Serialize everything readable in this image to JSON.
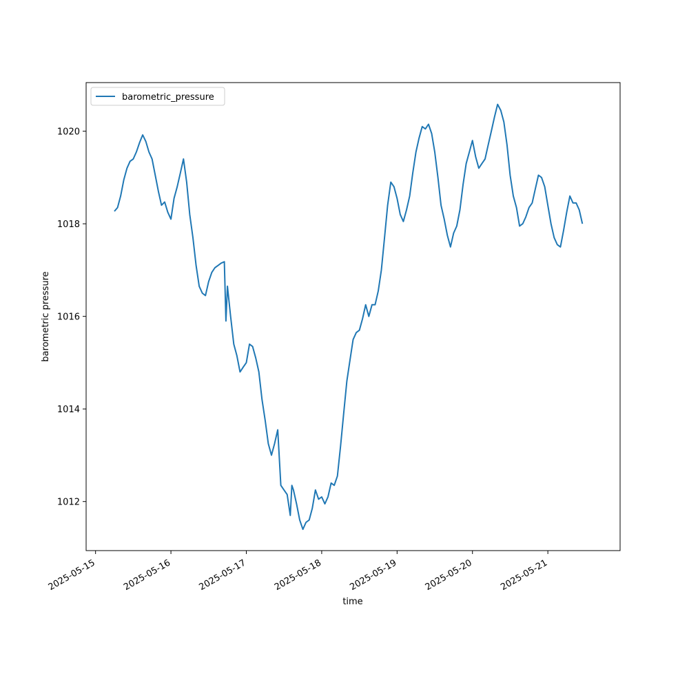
{
  "chart_data": {
    "type": "line",
    "title": "",
    "xlabel": "time",
    "ylabel": "barometric pressure",
    "x_ticks": [
      "2025-05-15",
      "2025-05-16",
      "2025-05-17",
      "2025-05-18",
      "2025-05-19",
      "2025-05-20",
      "2025-05-21"
    ],
    "y_ticks": [
      1012,
      1014,
      1016,
      1018,
      1020
    ],
    "xlim": [
      "2025-05-14 21:00",
      "2025-05-21 23:00"
    ],
    "ylim": [
      1010.94,
      1021.05
    ],
    "grid": false,
    "legend": {
      "position": "upper left",
      "entries": [
        "barometric_pressure"
      ]
    },
    "series": [
      {
        "name": "barometric_pressure",
        "color": "#1f77b4",
        "points": [
          [
            "2025-05-15 06:00",
            1018.27
          ],
          [
            "2025-05-15 07:00",
            1018.35
          ],
          [
            "2025-05-15 08:00",
            1018.6
          ],
          [
            "2025-05-15 09:00",
            1018.95
          ],
          [
            "2025-05-15 10:00",
            1019.2
          ],
          [
            "2025-05-15 11:00",
            1019.35
          ],
          [
            "2025-05-15 12:00",
            1019.4
          ],
          [
            "2025-05-15 13:00",
            1019.55
          ],
          [
            "2025-05-15 14:00",
            1019.75
          ],
          [
            "2025-05-15 15:00",
            1019.92
          ],
          [
            "2025-05-15 16:00",
            1019.78
          ],
          [
            "2025-05-15 17:00",
            1019.55
          ],
          [
            "2025-05-15 18:00",
            1019.4
          ],
          [
            "2025-05-15 19:00",
            1019.05
          ],
          [
            "2025-05-15 20:00",
            1018.7
          ],
          [
            "2025-05-15 21:00",
            1018.4
          ],
          [
            "2025-05-15 22:00",
            1018.47
          ],
          [
            "2025-05-15 23:00",
            1018.25
          ],
          [
            "2025-05-16 00:00",
            1018.1
          ],
          [
            "2025-05-16 01:00",
            1018.55
          ],
          [
            "2025-05-16 02:00",
            1018.8
          ],
          [
            "2025-05-16 03:00",
            1019.1
          ],
          [
            "2025-05-16 04:00",
            1019.4
          ],
          [
            "2025-05-16 05:00",
            1018.9
          ],
          [
            "2025-05-16 06:00",
            1018.2
          ],
          [
            "2025-05-16 07:00",
            1017.7
          ],
          [
            "2025-05-16 08:00",
            1017.1
          ],
          [
            "2025-05-16 09:00",
            1016.65
          ],
          [
            "2025-05-16 10:00",
            1016.5
          ],
          [
            "2025-05-16 11:00",
            1016.45
          ],
          [
            "2025-05-16 12:00",
            1016.75
          ],
          [
            "2025-05-16 13:00",
            1016.95
          ],
          [
            "2025-05-16 14:00",
            1017.05
          ],
          [
            "2025-05-16 15:00",
            1017.1
          ],
          [
            "2025-05-16 16:00",
            1017.15
          ],
          [
            "2025-05-16 17:00",
            1017.18
          ],
          [
            "2025-05-16 17:30",
            1015.9
          ],
          [
            "2025-05-16 18:00",
            1016.65
          ],
          [
            "2025-05-16 19:00",
            1016.0
          ],
          [
            "2025-05-16 20:00",
            1015.4
          ],
          [
            "2025-05-16 21:00",
            1015.15
          ],
          [
            "2025-05-16 22:00",
            1014.8
          ],
          [
            "2025-05-16 23:00",
            1014.9
          ],
          [
            "2025-05-17 00:00",
            1015.0
          ],
          [
            "2025-05-17 01:00",
            1015.4
          ],
          [
            "2025-05-17 02:00",
            1015.35
          ],
          [
            "2025-05-17 03:00",
            1015.1
          ],
          [
            "2025-05-17 04:00",
            1014.8
          ],
          [
            "2025-05-17 05:00",
            1014.2
          ],
          [
            "2025-05-17 06:00",
            1013.75
          ],
          [
            "2025-05-17 07:00",
            1013.25
          ],
          [
            "2025-05-17 08:00",
            1013.0
          ],
          [
            "2025-05-17 09:00",
            1013.25
          ],
          [
            "2025-05-17 10:00",
            1013.55
          ],
          [
            "2025-05-17 11:00",
            1012.35
          ],
          [
            "2025-05-17 12:00",
            1012.25
          ],
          [
            "2025-05-17 13:00",
            1012.15
          ],
          [
            "2025-05-17 14:00",
            1011.7
          ],
          [
            "2025-05-17 14:30",
            1012.35
          ],
          [
            "2025-05-17 15:00",
            1012.25
          ],
          [
            "2025-05-17 16:00",
            1011.95
          ],
          [
            "2025-05-17 17:00",
            1011.6
          ],
          [
            "2025-05-17 18:00",
            1011.4
          ],
          [
            "2025-05-17 19:00",
            1011.55
          ],
          [
            "2025-05-17 20:00",
            1011.6
          ],
          [
            "2025-05-17 21:00",
            1011.85
          ],
          [
            "2025-05-17 22:00",
            1012.25
          ],
          [
            "2025-05-17 23:00",
            1012.05
          ],
          [
            "2025-05-18 00:00",
            1012.1
          ],
          [
            "2025-05-18 01:00",
            1011.95
          ],
          [
            "2025-05-18 02:00",
            1012.1
          ],
          [
            "2025-05-18 03:00",
            1012.4
          ],
          [
            "2025-05-18 04:00",
            1012.35
          ],
          [
            "2025-05-18 05:00",
            1012.55
          ],
          [
            "2025-05-18 06:00",
            1013.2
          ],
          [
            "2025-05-18 07:00",
            1013.9
          ],
          [
            "2025-05-18 08:00",
            1014.6
          ],
          [
            "2025-05-18 09:00",
            1015.05
          ],
          [
            "2025-05-18 10:00",
            1015.5
          ],
          [
            "2025-05-18 11:00",
            1015.65
          ],
          [
            "2025-05-18 12:00",
            1015.7
          ],
          [
            "2025-05-18 13:00",
            1015.95
          ],
          [
            "2025-05-18 14:00",
            1016.25
          ],
          [
            "2025-05-18 15:00",
            1016.0
          ],
          [
            "2025-05-18 16:00",
            1016.25
          ],
          [
            "2025-05-18 17:00",
            1016.25
          ],
          [
            "2025-05-18 18:00",
            1016.55
          ],
          [
            "2025-05-18 19:00",
            1017.0
          ],
          [
            "2025-05-18 20:00",
            1017.7
          ],
          [
            "2025-05-18 21:00",
            1018.4
          ],
          [
            "2025-05-18 22:00",
            1018.9
          ],
          [
            "2025-05-18 23:00",
            1018.8
          ],
          [
            "2025-05-19 00:00",
            1018.55
          ],
          [
            "2025-05-19 01:00",
            1018.2
          ],
          [
            "2025-05-19 02:00",
            1018.05
          ],
          [
            "2025-05-19 03:00",
            1018.3
          ],
          [
            "2025-05-19 04:00",
            1018.6
          ],
          [
            "2025-05-19 05:00",
            1019.1
          ],
          [
            "2025-05-19 06:00",
            1019.55
          ],
          [
            "2025-05-19 07:00",
            1019.85
          ],
          [
            "2025-05-19 08:00",
            1020.1
          ],
          [
            "2025-05-19 09:00",
            1020.05
          ],
          [
            "2025-05-19 10:00",
            1020.15
          ],
          [
            "2025-05-19 11:00",
            1019.95
          ],
          [
            "2025-05-19 12:00",
            1019.55
          ],
          [
            "2025-05-19 13:00",
            1019.0
          ],
          [
            "2025-05-19 14:00",
            1018.4
          ],
          [
            "2025-05-19 15:00",
            1018.1
          ],
          [
            "2025-05-19 16:00",
            1017.75
          ],
          [
            "2025-05-19 17:00",
            1017.5
          ],
          [
            "2025-05-19 18:00",
            1017.8
          ],
          [
            "2025-05-19 19:00",
            1017.95
          ],
          [
            "2025-05-19 20:00",
            1018.3
          ],
          [
            "2025-05-19 21:00",
            1018.85
          ],
          [
            "2025-05-19 22:00",
            1019.3
          ],
          [
            "2025-05-19 23:00",
            1019.55
          ],
          [
            "2025-05-20 00:00",
            1019.8
          ],
          [
            "2025-05-20 01:00",
            1019.45
          ],
          [
            "2025-05-20 02:00",
            1019.2
          ],
          [
            "2025-05-20 03:00",
            1019.3
          ],
          [
            "2025-05-20 04:00",
            1019.4
          ],
          [
            "2025-05-20 05:00",
            1019.7
          ],
          [
            "2025-05-20 06:00",
            1020.0
          ],
          [
            "2025-05-20 07:00",
            1020.3
          ],
          [
            "2025-05-20 08:00",
            1020.58
          ],
          [
            "2025-05-20 09:00",
            1020.45
          ],
          [
            "2025-05-20 10:00",
            1020.2
          ],
          [
            "2025-05-20 11:00",
            1019.7
          ],
          [
            "2025-05-20 12:00",
            1019.05
          ],
          [
            "2025-05-20 13:00",
            1018.6
          ],
          [
            "2025-05-20 14:00",
            1018.35
          ],
          [
            "2025-05-20 15:00",
            1017.95
          ],
          [
            "2025-05-20 16:00",
            1018.0
          ],
          [
            "2025-05-20 17:00",
            1018.15
          ],
          [
            "2025-05-20 18:00",
            1018.35
          ],
          [
            "2025-05-20 19:00",
            1018.45
          ],
          [
            "2025-05-20 20:00",
            1018.75
          ],
          [
            "2025-05-20 21:00",
            1019.05
          ],
          [
            "2025-05-20 22:00",
            1019.0
          ],
          [
            "2025-05-20 23:00",
            1018.8
          ],
          [
            "2025-05-21 00:00",
            1018.4
          ],
          [
            "2025-05-21 01:00",
            1018.0
          ],
          [
            "2025-05-21 02:00",
            1017.7
          ],
          [
            "2025-05-21 03:00",
            1017.55
          ],
          [
            "2025-05-21 04:00",
            1017.5
          ],
          [
            "2025-05-21 05:00",
            1017.85
          ],
          [
            "2025-05-21 06:00",
            1018.25
          ],
          [
            "2025-05-21 07:00",
            1018.6
          ],
          [
            "2025-05-21 08:00",
            1018.45
          ],
          [
            "2025-05-21 09:00",
            1018.45
          ],
          [
            "2025-05-21 10:00",
            1018.3
          ],
          [
            "2025-05-21 11:00",
            1018.0
          ]
        ]
      }
    ]
  }
}
